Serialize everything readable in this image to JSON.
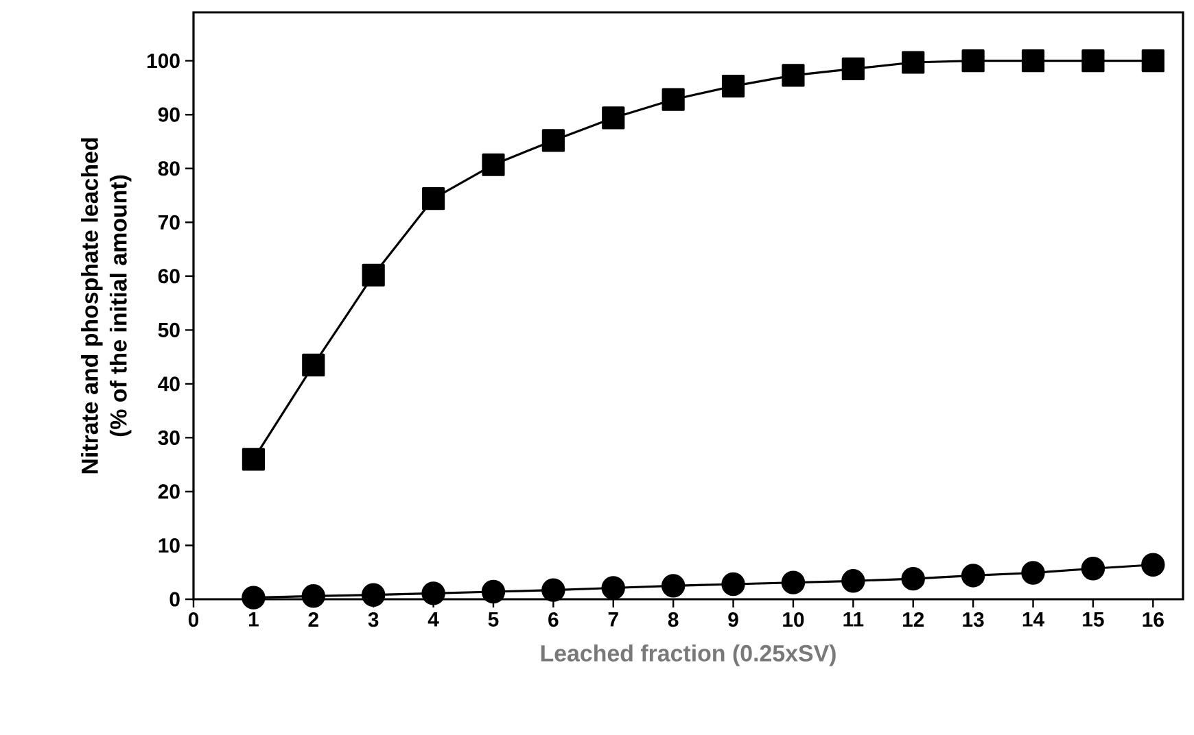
{
  "chart_data": {
    "type": "line",
    "xlabel": "Leached fraction (0.25xSV)",
    "ylabel": "Nitrate and phosphate leached\n(% of the initial amount)",
    "x": [
      1,
      2,
      3,
      4,
      5,
      6,
      7,
      8,
      9,
      10,
      11,
      12,
      13,
      14,
      15,
      16
    ],
    "series": [
      {
        "color": "#000000",
        "marker": "square",
        "values": [
          26.0,
          43.5,
          60.2,
          74.4,
          80.7,
          85.2,
          89.4,
          92.8,
          95.3,
          97.3,
          98.5,
          99.7,
          100,
          100,
          100,
          100
        ]
      },
      {
        "color": "#000000",
        "marker": "circle",
        "values": [
          0.3,
          0.6,
          0.8,
          1.1,
          1.4,
          1.7,
          2.1,
          2.5,
          2.8,
          3.1,
          3.4,
          3.8,
          4.4,
          4.9,
          5.7,
          6.4
        ]
      }
    ],
    "xlim": [
      0,
      16.5
    ],
    "xticks": [
      0,
      1,
      2,
      3,
      4,
      5,
      6,
      7,
      8,
      9,
      10,
      11,
      12,
      13,
      14,
      15,
      16
    ],
    "ylim": [
      0,
      109
    ],
    "yticks": [
      0,
      10,
      20,
      30,
      40,
      50,
      60,
      70,
      80,
      90,
      100
    ],
    "grid": false,
    "line_style": "solid"
  }
}
